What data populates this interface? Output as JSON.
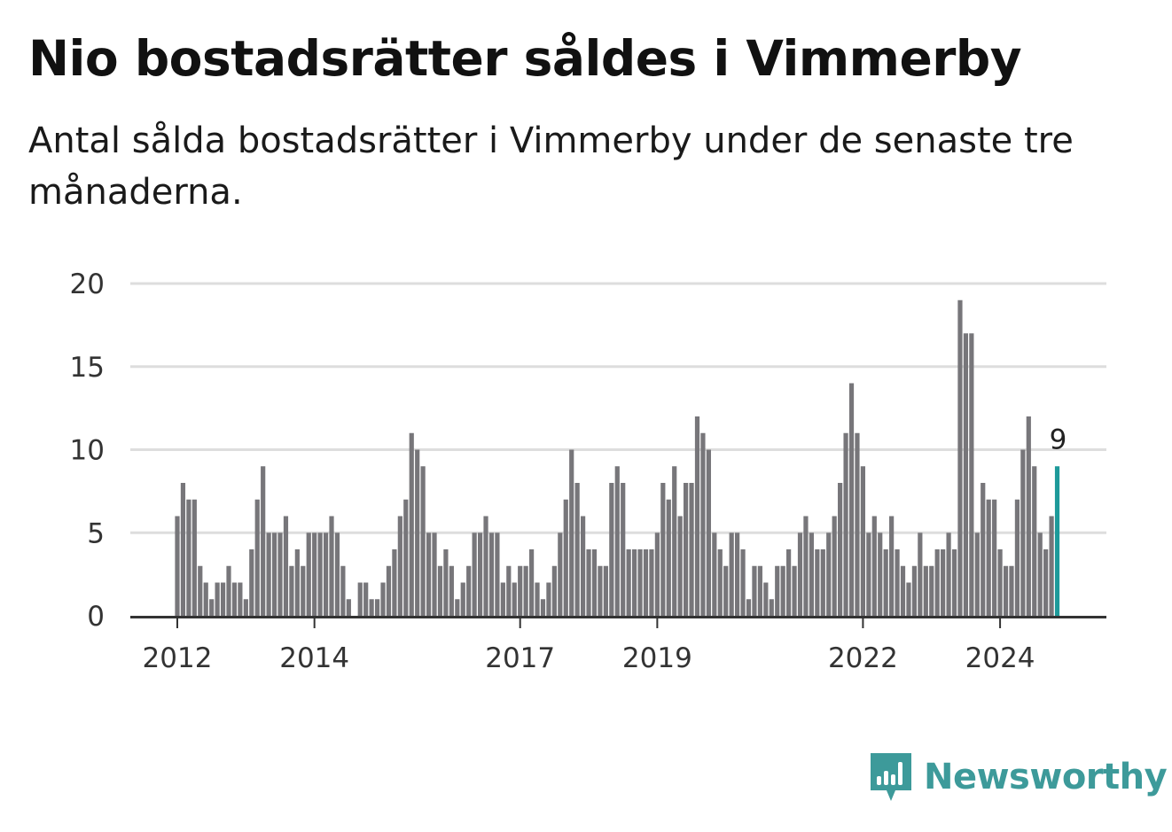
{
  "header": {
    "title": "Nio bostadsrätter såldes i Vimmerby",
    "subtitle": "Antal sålda bostadsrätter i Vimmerby under de senaste tre månaderna."
  },
  "brand": {
    "name": "Newsworthy"
  },
  "colors": {
    "bar": "#77767a",
    "highlight": "#1d9a9a",
    "grid": "#dddddd",
    "axis": "#333333",
    "brand": "#3d9a9a"
  },
  "chart_data": {
    "type": "bar",
    "title": "Nio bostadsrätter såldes i Vimmerby",
    "xlabel": "",
    "ylabel": "",
    "ylim": [
      0,
      20
    ],
    "yticks": [
      0,
      5,
      10,
      15,
      20
    ],
    "x_start": "2012-01",
    "x_unit": "month",
    "xtick_labels": [
      {
        "label": "2012",
        "index": 0
      },
      {
        "label": "2014",
        "index": 24
      },
      {
        "label": "2017",
        "index": 60
      },
      {
        "label": "2019",
        "index": 84
      },
      {
        "label": "2022",
        "index": 120
      },
      {
        "label": "2024",
        "index": 144
      }
    ],
    "grid": true,
    "legend": "none",
    "values": [
      6,
      8,
      7,
      7,
      3,
      2,
      1,
      2,
      2,
      3,
      2,
      2,
      1,
      4,
      7,
      9,
      5,
      5,
      5,
      6,
      3,
      4,
      3,
      5,
      5,
      5,
      5,
      6,
      5,
      3,
      1,
      0,
      2,
      2,
      1,
      1,
      2,
      3,
      4,
      6,
      7,
      11,
      10,
      9,
      5,
      5,
      3,
      4,
      3,
      1,
      2,
      3,
      5,
      5,
      6,
      5,
      5,
      2,
      3,
      2,
      3,
      3,
      4,
      2,
      1,
      2,
      3,
      5,
      7,
      10,
      8,
      6,
      4,
      4,
      3,
      3,
      8,
      9,
      8,
      4,
      4,
      4,
      4,
      4,
      5,
      8,
      7,
      9,
      6,
      8,
      8,
      12,
      11,
      10,
      5,
      4,
      3,
      5,
      5,
      4,
      1,
      3,
      3,
      2,
      1,
      3,
      3,
      4,
      3,
      5,
      6,
      5,
      4,
      4,
      5,
      6,
      8,
      11,
      14,
      11,
      9,
      5,
      6,
      5,
      4,
      6,
      4,
      3,
      2,
      3,
      5,
      3,
      3,
      4,
      4,
      5,
      4,
      19,
      17,
      17,
      5,
      8,
      7,
      7,
      4,
      3,
      3,
      7,
      10,
      12,
      9,
      5,
      4,
      6,
      9
    ],
    "highlight": {
      "index": 154,
      "label": "9"
    }
  }
}
